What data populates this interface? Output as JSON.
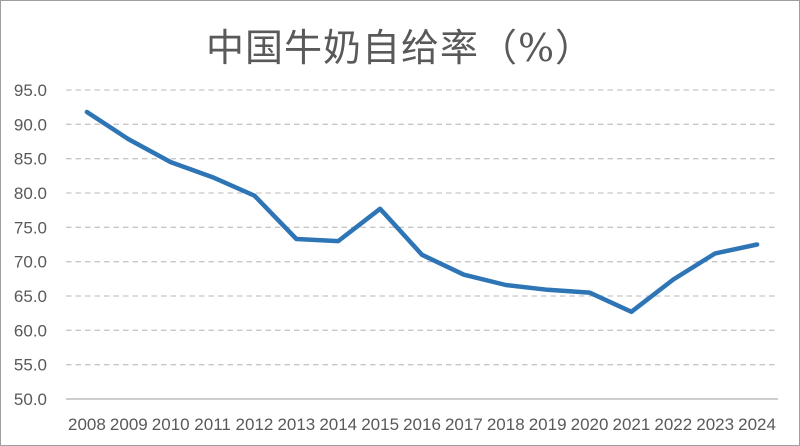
{
  "chart_data": {
    "type": "line",
    "title": "中国牛奶自给率（%）",
    "categories": [
      "2008",
      "2009",
      "2010",
      "2011",
      "2012",
      "2013",
      "2014",
      "2015",
      "2016",
      "2017",
      "2018",
      "2019",
      "2020",
      "2021",
      "2022",
      "2023",
      "2024"
    ],
    "values": [
      91.8,
      87.8,
      84.5,
      82.3,
      79.6,
      73.3,
      73.0,
      77.7,
      71.0,
      68.1,
      66.6,
      65.9,
      65.5,
      62.7,
      67.4,
      71.2,
      72.5
    ],
    "xlabel": "",
    "ylabel": "",
    "ylim": [
      50,
      95
    ],
    "ytick_values": [
      50,
      55,
      60,
      65,
      70,
      75,
      80,
      85,
      90,
      95
    ],
    "ytick_labels": [
      "50.0",
      "55.0",
      "60.0",
      "65.0",
      "70.0",
      "75.0",
      "80.0",
      "85.0",
      "90.0",
      "95.0"
    ],
    "grid": "horizontal-dashed",
    "legend": "none",
    "colors": {
      "line": "#2E75B6",
      "gridline": "#C6C6C6",
      "axis_line": "#AFAFAF",
      "tick_label": "#595959",
      "title": "#595959",
      "background": "#FFFFFF",
      "frame_border": "#9E9E9E"
    }
  }
}
